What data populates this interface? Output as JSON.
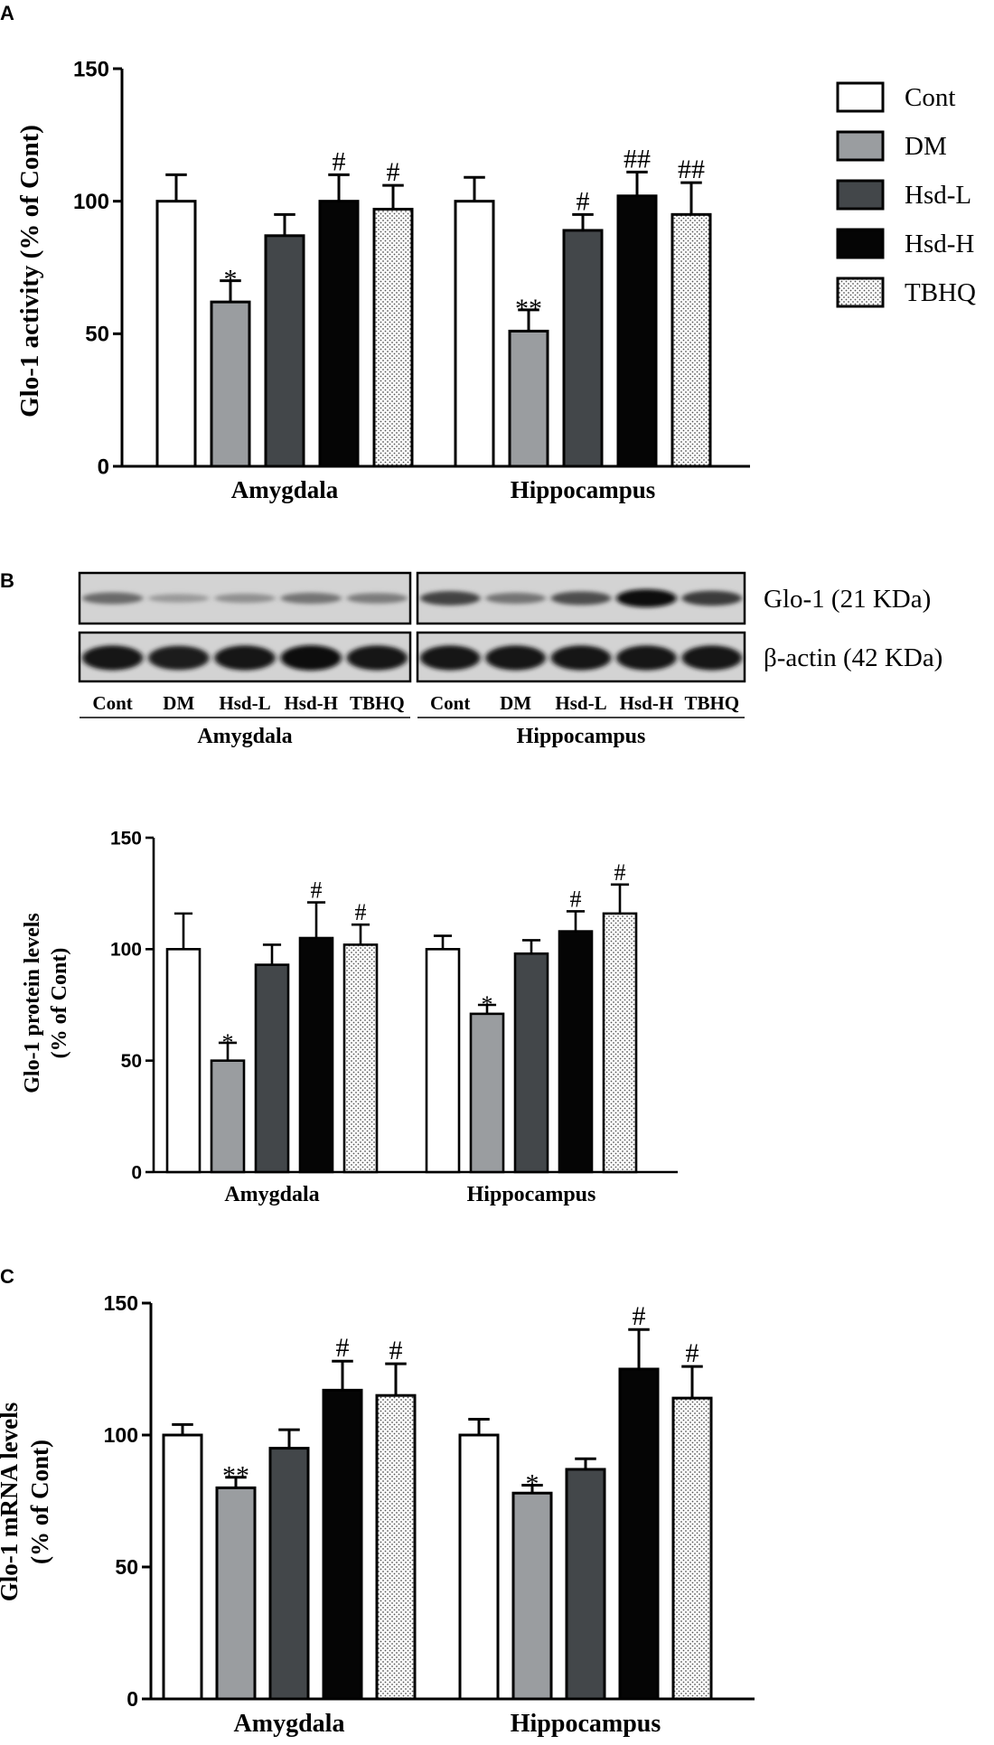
{
  "legend": {
    "position": "top-right",
    "entries": [
      {
        "label": "Cont",
        "fill": "white"
      },
      {
        "label": "DM",
        "fill": "light-gray"
      },
      {
        "label": "Hsd-L",
        "fill": "dark-gray"
      },
      {
        "label": "Hsd-H",
        "fill": "black"
      },
      {
        "label": "TBHQ",
        "fill": "dotted"
      }
    ]
  },
  "colors": {
    "Cont": "#ffffff",
    "DM": "#9a9da0",
    "Hsd-L": "#43474a",
    "Hsd-H": "#050505",
    "TBHQ": "dots",
    "stroke": "#000000"
  },
  "chart_data": [
    {
      "panel": "A",
      "type": "bar",
      "ylabel": "Glo-1  activity (% of Cont)",
      "xlabel": "",
      "ylim": [
        0,
        150
      ],
      "yticks": [
        "0",
        "50",
        "100",
        "150"
      ],
      "categories": [
        "Amygdala",
        "Hippocampus"
      ],
      "series": [
        {
          "name": "Cont",
          "values": [
            100,
            100
          ],
          "errors": [
            10,
            9
          ],
          "annotations": [
            "",
            ""
          ]
        },
        {
          "name": "DM",
          "values": [
            62,
            51
          ],
          "errors": [
            8,
            8
          ],
          "annotations": [
            "*",
            "**"
          ]
        },
        {
          "name": "Hsd-L",
          "values": [
            87,
            89
          ],
          "errors": [
            8,
            6
          ],
          "annotations": [
            "",
            "#"
          ]
        },
        {
          "name": "Hsd-H",
          "values": [
            100,
            102
          ],
          "errors": [
            10,
            9
          ],
          "annotations": [
            "#",
            "##"
          ]
        },
        {
          "name": "TBHQ",
          "values": [
            97,
            95
          ],
          "errors": [
            9,
            12
          ],
          "annotations": [
            "#",
            "##"
          ]
        }
      ],
      "grid": false
    },
    {
      "panel": "B",
      "type": "bar",
      "ylabel_lines": [
        "Glo-1 protein levels",
        "(% of Cont)"
      ],
      "xlabel": "",
      "ylim": [
        0,
        150
      ],
      "yticks": [
        "0",
        "50",
        "100",
        "150"
      ],
      "categories": [
        "Amygdala",
        "Hippocampus"
      ],
      "series": [
        {
          "name": "Cont",
          "values": [
            100,
            100
          ],
          "errors": [
            16,
            6
          ],
          "annotations": [
            "",
            ""
          ]
        },
        {
          "name": "DM",
          "values": [
            50,
            71
          ],
          "errors": [
            8,
            4
          ],
          "annotations": [
            "*",
            "*"
          ]
        },
        {
          "name": "Hsd-L",
          "values": [
            93,
            98
          ],
          "errors": [
            9,
            6
          ],
          "annotations": [
            "",
            ""
          ]
        },
        {
          "name": "Hsd-H",
          "values": [
            105,
            108
          ],
          "errors": [
            16,
            9
          ],
          "annotations": [
            "#",
            "#"
          ]
        },
        {
          "name": "TBHQ",
          "values": [
            102,
            116
          ],
          "errors": [
            9,
            13
          ],
          "annotations": [
            "#",
            "#"
          ]
        }
      ],
      "grid": false
    },
    {
      "panel": "C",
      "type": "bar",
      "ylabel_lines": [
        "Glo-1 mRNA levels",
        "(% of Cont)"
      ],
      "xlabel": "",
      "ylim": [
        0,
        150
      ],
      "yticks": [
        "0",
        "50",
        "100",
        "150"
      ],
      "categories": [
        "Amygdala",
        "Hippocampus"
      ],
      "series": [
        {
          "name": "Cont",
          "values": [
            100,
            100
          ],
          "errors": [
            4,
            6
          ],
          "annotations": [
            "",
            ""
          ]
        },
        {
          "name": "DM",
          "values": [
            80,
            78
          ],
          "errors": [
            4,
            3
          ],
          "annotations": [
            "**",
            "*"
          ]
        },
        {
          "name": "Hsd-L",
          "values": [
            95,
            87
          ],
          "errors": [
            7,
            4
          ],
          "annotations": [
            "",
            ""
          ]
        },
        {
          "name": "Hsd-H",
          "values": [
            117,
            125
          ],
          "errors": [
            11,
            15
          ],
          "annotations": [
            "#",
            "#"
          ]
        },
        {
          "name": "TBHQ",
          "values": [
            115,
            114
          ],
          "errors": [
            12,
            12
          ],
          "annotations": [
            "#",
            "#"
          ]
        }
      ],
      "grid": false
    }
  ],
  "blot": {
    "bands": [
      {
        "label": "Glo-1 (21 KDa)",
        "intensity": [
          [
            0.5,
            0.25,
            0.3,
            0.45,
            0.4
          ],
          [
            0.7,
            0.45,
            0.65,
            1.0,
            0.75
          ]
        ]
      },
      {
        "label": "β-actin (42 KDa)",
        "intensity": [
          [
            0.95,
            0.9,
            0.95,
            1.0,
            0.95
          ],
          [
            0.95,
            0.95,
            0.95,
            0.95,
            0.95
          ]
        ]
      }
    ],
    "lanes": [
      "Cont",
      "DM",
      "Hsd-L",
      "Hsd-H",
      "TBHQ"
    ],
    "regions": [
      "Amygdala",
      "Hippocampus"
    ]
  },
  "panel_letters": [
    "A",
    "B",
    "C"
  ]
}
